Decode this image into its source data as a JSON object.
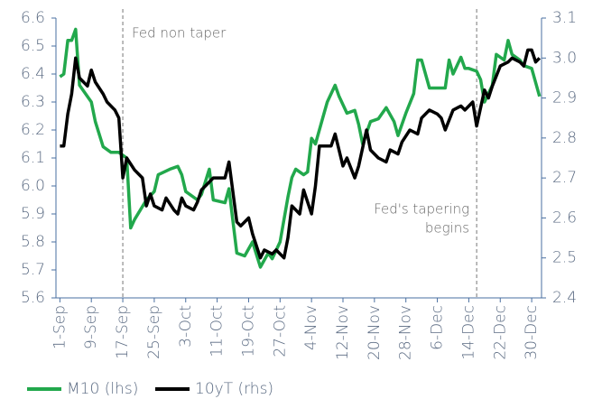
{
  "chart_data": {
    "type": "line",
    "xlim": [
      -1,
      122.5
    ],
    "xticks": [
      {
        "value": 0,
        "label": "1-Sep"
      },
      {
        "value": 8,
        "label": "9-Sep"
      },
      {
        "value": 16,
        "label": "17-Sep"
      },
      {
        "value": 24,
        "label": "25-Sep"
      },
      {
        "value": 32,
        "label": "3-Oct"
      },
      {
        "value": 40,
        "label": "11-Oct"
      },
      {
        "value": 48,
        "label": "19-Oct"
      },
      {
        "value": 56,
        "label": "27-Oct"
      },
      {
        "value": 64,
        "label": "4-Nov"
      },
      {
        "value": 72,
        "label": "12-Nov"
      },
      {
        "value": 80,
        "label": "20-Nov"
      },
      {
        "value": 88,
        "label": "28-Nov"
      },
      {
        "value": 96,
        "label": "6-Dec"
      },
      {
        "value": 104,
        "label": "14-Dec"
      },
      {
        "value": 112,
        "label": "22-Dec"
      },
      {
        "value": 120,
        "label": "30-Dec"
      }
    ],
    "ylim": [
      5.6,
      6.6
    ],
    "yticks": [
      {
        "value": 5.6,
        "label": "5.6"
      },
      {
        "value": 5.7,
        "label": "5.7"
      },
      {
        "value": 5.8,
        "label": "5.8"
      },
      {
        "value": 5.9,
        "label": "5.9"
      },
      {
        "value": 6.0,
        "label": "6.0"
      },
      {
        "value": 6.1,
        "label": "6.1"
      },
      {
        "value": 6.2,
        "label": "6.2"
      },
      {
        "value": 6.3,
        "label": "6.3"
      },
      {
        "value": 6.4,
        "label": "6.4"
      },
      {
        "value": 6.5,
        "label": "6.5"
      },
      {
        "value": 6.6,
        "label": "6.6"
      }
    ],
    "y2lim": [
      2.4,
      3.1
    ],
    "y2ticks": [
      {
        "value": 2.4,
        "label": "2.4"
      },
      2.5,
      2.6,
      2.7,
      2.8,
      2.9,
      {
        "value": 3.0,
        "label": "3.0"
      },
      3.1
    ],
    "annotations": [
      {
        "x": 16,
        "text": [
          "Fed non taper"
        ]
      },
      {
        "x": 106,
        "text": [
          "Fed's tapering",
          "begins"
        ]
      }
    ],
    "series": [
      {
        "name": "M10 (lhs)",
        "color": "#22a84c",
        "axis": "y",
        "x": [
          0,
          1,
          2,
          3,
          4,
          5,
          8,
          9,
          11,
          13,
          15,
          17,
          18,
          19,
          22,
          24,
          25,
          28,
          30,
          31,
          32,
          35,
          36,
          38,
          39,
          42,
          43,
          45,
          47,
          49,
          51,
          53,
          54,
          56,
          58,
          59,
          60,
          62,
          63,
          64,
          65,
          67,
          68,
          70,
          71,
          73,
          75,
          76,
          77,
          79,
          81,
          83,
          85,
          86,
          88,
          90,
          91,
          92,
          94,
          97,
          98,
          99,
          100,
          102,
          103,
          104,
          106,
          107,
          108,
          110,
          111,
          113,
          114,
          115,
          117,
          118,
          120,
          122
        ],
        "values": [
          6.39,
          6.4,
          6.52,
          6.52,
          6.56,
          6.36,
          6.3,
          6.23,
          6.14,
          6.12,
          6.12,
          6.1,
          5.85,
          5.88,
          5.95,
          5.98,
          6.04,
          6.06,
          6.07,
          6.04,
          5.98,
          5.95,
          5.97,
          6.06,
          5.95,
          5.94,
          5.99,
          5.76,
          5.75,
          5.8,
          5.71,
          5.76,
          5.74,
          5.8,
          5.96,
          6.03,
          6.06,
          6.04,
          6.05,
          6.17,
          6.15,
          6.25,
          6.3,
          6.36,
          6.32,
          6.26,
          6.27,
          6.22,
          6.15,
          6.23,
          6.24,
          6.28,
          6.23,
          6.18,
          6.26,
          6.33,
          6.45,
          6.45,
          6.35,
          6.35,
          6.35,
          6.45,
          6.4,
          6.46,
          6.42,
          6.42,
          6.41,
          6.38,
          6.3,
          6.36,
          6.47,
          6.45,
          6.52,
          6.47,
          6.45,
          6.43,
          6.42,
          6.32
        ]
      },
      {
        "name": "10yT (rhs)",
        "color": "#000000",
        "axis": "y2",
        "x": [
          0,
          1,
          2,
          3,
          4,
          5,
          7,
          8,
          9,
          11,
          12,
          14,
          15,
          16,
          17,
          19,
          21,
          22,
          23,
          24,
          26,
          27,
          29,
          30,
          31,
          32,
          34,
          35,
          36,
          38,
          39,
          40,
          42,
          43,
          45,
          46,
          48,
          49,
          51,
          52,
          54,
          55,
          57,
          58,
          59,
          61,
          62,
          64,
          65,
          66,
          68,
          69,
          70,
          72,
          73,
          75,
          76,
          78,
          79,
          81,
          83,
          84,
          86,
          87,
          89,
          91,
          92,
          94,
          96,
          97,
          98,
          100,
          102,
          103,
          105,
          106,
          108,
          109,
          110,
          112,
          114,
          115,
          117,
          118,
          119,
          120,
          121,
          122
        ],
        "values": [
          2.78,
          2.78,
          2.86,
          2.91,
          3.0,
          2.95,
          2.93,
          2.97,
          2.94,
          2.91,
          2.89,
          2.87,
          2.85,
          2.7,
          2.75,
          2.72,
          2.7,
          2.63,
          2.66,
          2.63,
          2.62,
          2.65,
          2.62,
          2.61,
          2.65,
          2.63,
          2.62,
          2.64,
          2.67,
          2.69,
          2.7,
          2.7,
          2.7,
          2.74,
          2.59,
          2.58,
          2.6,
          2.56,
          2.5,
          2.52,
          2.51,
          2.52,
          2.5,
          2.55,
          2.63,
          2.61,
          2.67,
          2.61,
          2.68,
          2.78,
          2.78,
          2.78,
          2.81,
          2.73,
          2.75,
          2.7,
          2.73,
          2.82,
          2.77,
          2.75,
          2.74,
          2.77,
          2.76,
          2.79,
          2.82,
          2.81,
          2.85,
          2.87,
          2.86,
          2.85,
          2.82,
          2.87,
          2.88,
          2.87,
          2.89,
          2.83,
          2.92,
          2.9,
          2.93,
          2.98,
          2.99,
          3.0,
          2.99,
          2.98,
          3.02,
          3.02,
          2.99,
          3.0
        ]
      }
    ]
  }
}
